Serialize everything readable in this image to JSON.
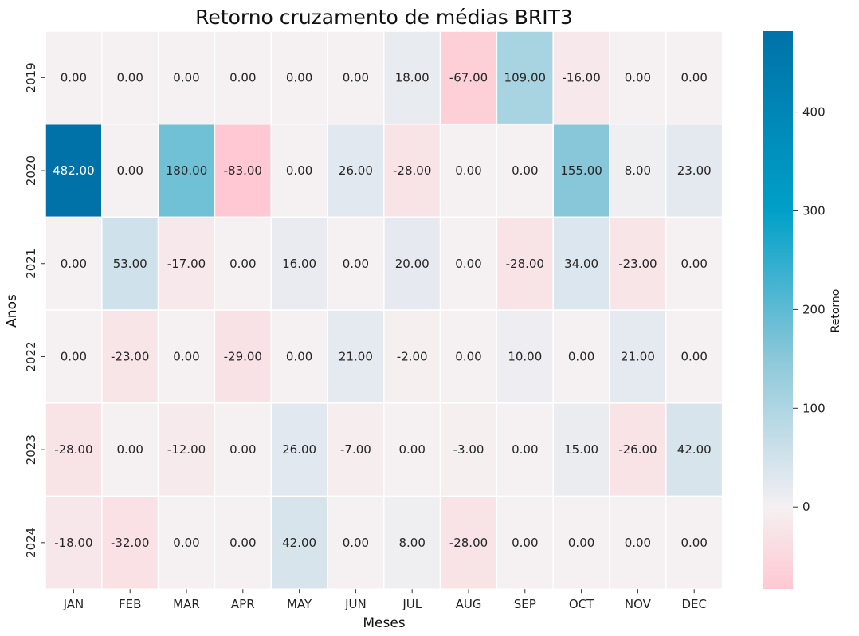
{
  "chart_data": {
    "type": "heatmap",
    "title": "Retorno cruzamento de médias BRIT3",
    "xlabel": "Meses",
    "ylabel": "Anos",
    "x_categories": [
      "JAN",
      "FEB",
      "MAR",
      "APR",
      "MAY",
      "JUN",
      "JUL",
      "AUG",
      "SEP",
      "OCT",
      "NOV",
      "DEC"
    ],
    "y_categories": [
      "2019",
      "2020",
      "2021",
      "2022",
      "2023",
      "2024"
    ],
    "values": [
      [
        0,
        0,
        0,
        0,
        0,
        0,
        18,
        -67,
        109,
        -16,
        0,
        0
      ],
      [
        482,
        0,
        180,
        -83,
        0,
        26,
        -28,
        0,
        0,
        155,
        8,
        23
      ],
      [
        0,
        53,
        -17,
        0,
        16,
        0,
        20,
        0,
        -28,
        34,
        -23,
        0
      ],
      [
        0,
        -23,
        0,
        -29,
        0,
        21,
        -2,
        0,
        10,
        0,
        21,
        0
      ],
      [
        -28,
        0,
        -12,
        0,
        26,
        -7,
        0,
        -3,
        0,
        15,
        -26,
        42
      ],
      [
        -18,
        -32,
        0,
        0,
        42,
        0,
        8,
        -28,
        0,
        0,
        0,
        0
      ]
    ],
    "colorbar": {
      "label": "Retorno",
      "ticks": [
        0,
        100,
        200,
        300,
        400
      ],
      "min": -83,
      "max": 482
    },
    "colors": {
      "negative": "#ffc8d2",
      "zero": "#f5f0f1",
      "light_positive": "#e6eaf0",
      "mid_positive": "#8cc8da",
      "strong_positive": "#00a0c8",
      "max_positive": "#0072a8"
    }
  }
}
